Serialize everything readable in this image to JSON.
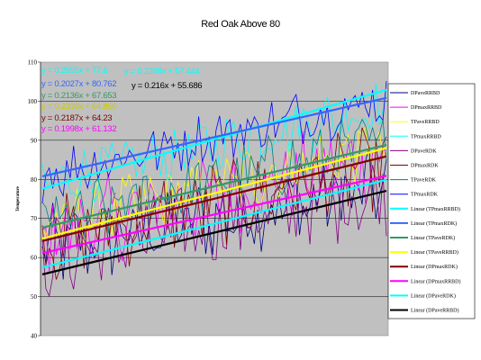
{
  "chart_data": {
    "type": "line",
    "title": "Red Oak Above 80",
    "ylabel": "Temperature",
    "ylim": [
      40,
      110
    ],
    "yticks": [
      40,
      50,
      60,
      70,
      80,
      90,
      100,
      110
    ],
    "grid": true,
    "legend_position": "right",
    "n_points": 100,
    "series": [
      {
        "name": "DPaveRRBD",
        "color": "#000080",
        "kind": "data",
        "base": 62,
        "slope": 0.16,
        "amp": 9
      },
      {
        "name": "DPmaxRRBD",
        "color": "#ff00ff",
        "kind": "data",
        "base": 66,
        "slope": 0.2,
        "amp": 9
      },
      {
        "name": "TPaveRRBD",
        "color": "#ffff00",
        "kind": "data",
        "base": 68,
        "slope": 0.21,
        "amp": 7
      },
      {
        "name": "TPmaxRRBD",
        "color": "#00ffff",
        "kind": "data",
        "base": 79,
        "slope": 0.2,
        "amp": 6
      },
      {
        "name": "DPaveRDK",
        "color": "#800080",
        "kind": "data",
        "base": 60,
        "slope": 0.17,
        "amp": 9
      },
      {
        "name": "DPmaxRDK",
        "color": "#800000",
        "kind": "data",
        "base": 64,
        "slope": 0.2,
        "amp": 9
      },
      {
        "name": "TPaveRDK",
        "color": "#008080",
        "kind": "data",
        "base": 69,
        "slope": 0.21,
        "amp": 7
      },
      {
        "name": "TPmaxRDK",
        "color": "#0000ff",
        "kind": "data",
        "base": 81,
        "slope": 0.2,
        "amp": 6
      },
      {
        "name": "Linear (TPmaxRRBD)",
        "color": "#00ffff",
        "kind": "trend",
        "slope": 0.2555,
        "intercept": 77.6
      },
      {
        "name": "Linear (TPmaxRDK)",
        "color": "#3366ff",
        "kind": "trend",
        "slope": 0.2027,
        "intercept": 80.762
      },
      {
        "name": "Linear (TPaveRDK)",
        "color": "#339966",
        "kind": "trend",
        "slope": 0.2136,
        "intercept": 67.653
      },
      {
        "name": "Linear (TPaveRRBD)",
        "color": "#ffff00",
        "kind": "trend",
        "slope": 0.2338,
        "intercept": 64.866
      },
      {
        "name": "Linear (DPmaxRDK)",
        "color": "#800000",
        "kind": "trend",
        "slope": 0.2187,
        "intercept": 64.23
      },
      {
        "name": "Linear (DPmaxRRBD)",
        "color": "#ff00ff",
        "kind": "trend",
        "slope": 0.1998,
        "intercept": 61.132
      },
      {
        "name": "Linear (DPaveRDK)",
        "color": "#00ffff",
        "kind": "trend",
        "slope": 0.2268,
        "intercept": 57.444
      },
      {
        "name": "Linear (DPaveRRBD)",
        "color": "#000000",
        "kind": "trend",
        "slope": 0.216,
        "intercept": 55.686
      }
    ],
    "annotations": [
      {
        "text": "y = 0.2555x + 77.6",
        "color": "#00ffff"
      },
      {
        "text": "y = 0.2268x + 57.444",
        "color": "#00ffff"
      },
      {
        "text": "y = 0.2027x + 80.762",
        "color": "#3366ff"
      },
      {
        "text": "y = 0.216x + 55.686",
        "color": "#000000"
      },
      {
        "text": "y = 0.2136x + 67.653",
        "color": "#339966"
      },
      {
        "text": "y = 0.2338x + 64.866",
        "color": "#cccc00"
      },
      {
        "text": "y = 0.2187x + 64.23",
        "color": "#800000"
      },
      {
        "text": "y = 0.1998x + 61.132",
        "color": "#ff00ff"
      }
    ]
  }
}
